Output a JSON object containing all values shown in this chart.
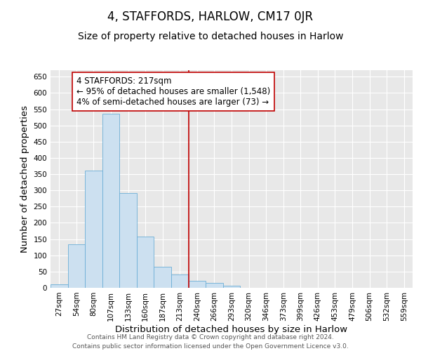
{
  "title": "4, STAFFORDS, HARLOW, CM17 0JR",
  "subtitle": "Size of property relative to detached houses in Harlow",
  "xlabel": "Distribution of detached houses by size in Harlow",
  "ylabel": "Number of detached properties",
  "bar_labels": [
    "27sqm",
    "54sqm",
    "80sqm",
    "107sqm",
    "133sqm",
    "160sqm",
    "187sqm",
    "213sqm",
    "240sqm",
    "266sqm",
    "293sqm",
    "320sqm",
    "346sqm",
    "373sqm",
    "399sqm",
    "426sqm",
    "453sqm",
    "479sqm",
    "506sqm",
    "532sqm",
    "559sqm"
  ],
  "bar_values": [
    10,
    133,
    360,
    535,
    292,
    158,
    65,
    40,
    22,
    15,
    7,
    0,
    0,
    0,
    1,
    0,
    0,
    0,
    0,
    1,
    0
  ],
  "bar_color": "#cce0f0",
  "bar_edge_color": "#6baed6",
  "vline_x_idx": 7.5,
  "vline_color": "#c00000",
  "annotation_text": "4 STAFFORDS: 217sqm\n← 95% of detached houses are smaller (1,548)\n4% of semi-detached houses are larger (73) →",
  "annotation_box_color": "white",
  "annotation_box_edge": "#c00000",
  "ylim": [
    0,
    670
  ],
  "yticks": [
    0,
    50,
    100,
    150,
    200,
    250,
    300,
    350,
    400,
    450,
    500,
    550,
    600,
    650
  ],
  "grid_color": "#cccccc",
  "bg_color": "#e8e8e8",
  "footer_line1": "Contains HM Land Registry data © Crown copyright and database right 2024.",
  "footer_line2": "Contains public sector information licensed under the Open Government Licence v3.0.",
  "title_fontsize": 12,
  "subtitle_fontsize": 10,
  "axis_label_fontsize": 9.5,
  "tick_fontsize": 7.5,
  "annotation_fontsize": 8.5,
  "footer_fontsize": 6.5
}
